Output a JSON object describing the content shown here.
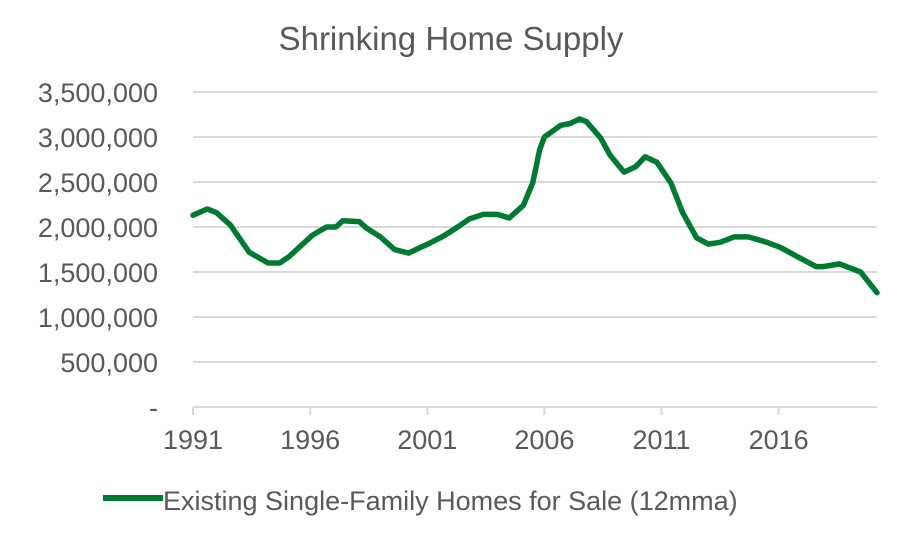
{
  "chart_data": {
    "type": "line",
    "title": "Shrinking Home Supply",
    "xlabel": "",
    "ylabel": "",
    "xlim": [
      1991,
      2020.2
    ],
    "ylim": [
      0,
      3500000
    ],
    "grid": true,
    "legend_position": "bottom",
    "x_ticks": [
      "1991",
      "1996",
      "2001",
      "2006",
      "2011",
      "2016"
    ],
    "x_tick_values": [
      1991,
      1996,
      2001,
      2006,
      2011,
      2016
    ],
    "y_ticks": [
      "-",
      "500,000",
      "1,000,000",
      "1,500,000",
      "2,000,000",
      "2,500,000",
      "3,000,000",
      "3,500,000"
    ],
    "y_tick_values": [
      0,
      500000,
      1000000,
      1500000,
      2000000,
      2500000,
      3000000,
      3500000
    ],
    "series": [
      {
        "name": "Existing Single-Family Homes for Sale (12mma)",
        "color": "#007a33",
        "x": [
          1991.0,
          1991.6,
          1992.0,
          1992.6,
          1993.4,
          1994.2,
          1994.7,
          1995.1,
          1996.1,
          1996.7,
          1997.1,
          1997.4,
          1998.1,
          1998.4,
          1999.0,
          1999.6,
          2000.2,
          2000.6,
          2001.1,
          2001.7,
          2002.3,
          2002.8,
          2003.4,
          2004.0,
          2004.5,
          2005.1,
          2005.5,
          2005.8,
          2006.0,
          2006.7,
          2007.1,
          2007.5,
          2007.8,
          2008.4,
          2008.8,
          2009.4,
          2009.9,
          2010.3,
          2010.8,
          2011.4,
          2011.9,
          2012.5,
          2013.0,
          2013.5,
          2014.1,
          2014.7,
          2015.5,
          2016.1,
          2016.8,
          2017.6,
          2017.9,
          2018.6,
          2019.5,
          2020.2
        ],
        "y": [
          2130000,
          2200000,
          2160000,
          2020000,
          1720000,
          1600000,
          1600000,
          1670000,
          1910000,
          2000000,
          2000000,
          2070000,
          2060000,
          1990000,
          1890000,
          1750000,
          1710000,
          1760000,
          1820000,
          1900000,
          2000000,
          2090000,
          2140000,
          2140000,
          2100000,
          2240000,
          2490000,
          2860000,
          3000000,
          3130000,
          3150000,
          3200000,
          3170000,
          2990000,
          2800000,
          2610000,
          2670000,
          2780000,
          2720000,
          2490000,
          2160000,
          1880000,
          1810000,
          1830000,
          1890000,
          1890000,
          1830000,
          1770000,
          1670000,
          1560000,
          1560000,
          1590000,
          1500000,
          1270000
        ]
      }
    ]
  }
}
